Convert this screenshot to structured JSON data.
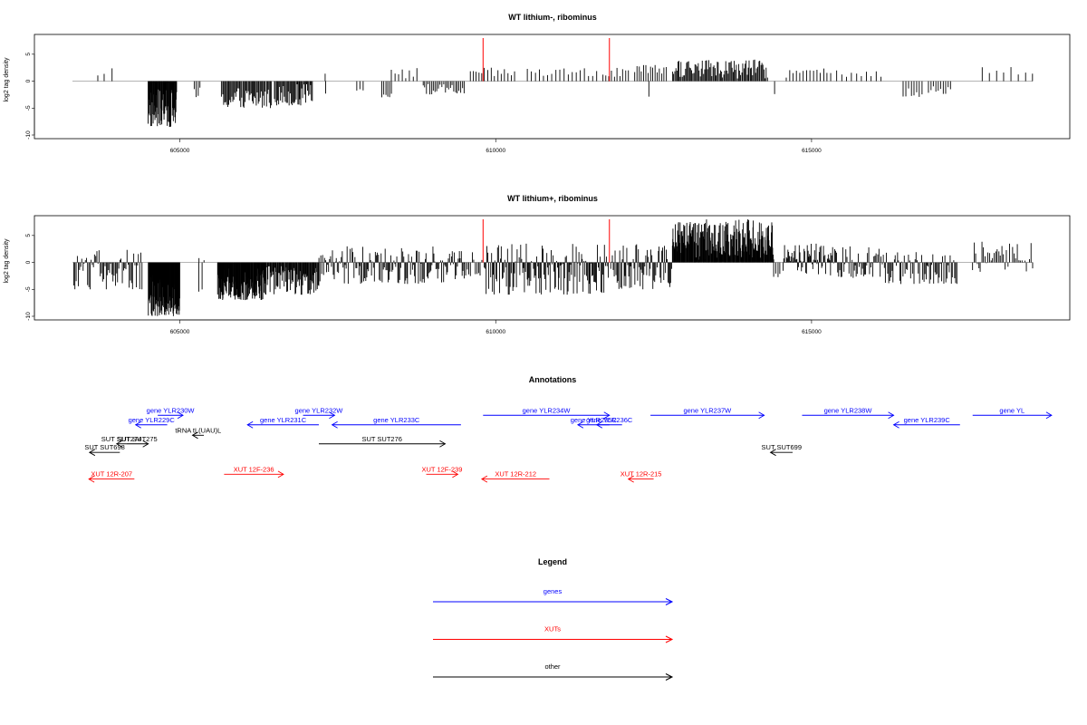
{
  "colors": {
    "genes": "#0000ff",
    "xuts": "#ff0000",
    "other": "#000000",
    "marker": "#ff0000"
  },
  "chart_data": [
    {
      "type": "bar",
      "title": "WT lithium-, ribominus",
      "ylabel": "log2 tag density",
      "xlim": [
        603300,
        618500
      ],
      "ylim": [
        -10,
        8
      ],
      "yticks": [
        5,
        0,
        -5,
        -10
      ],
      "xticks": [
        605000,
        610000,
        615000
      ],
      "markers": [
        609800,
        611800
      ],
      "grid": false,
      "regions": [
        {
          "from": 603700,
          "to": 603800,
          "n": 2,
          "min": 0.5,
          "max": 2.5
        },
        {
          "from": 603900,
          "to": 603950,
          "n": 1,
          "min": 2.0,
          "max": 3.0
        },
        {
          "from": 604500,
          "to": 604950,
          "n": 60,
          "min": -8.5,
          "max": -1.5
        },
        {
          "from": 605230,
          "to": 605320,
          "n": 4,
          "min": -3.5,
          "max": -1.0
        },
        {
          "from": 605660,
          "to": 606450,
          "n": 50,
          "min": -5,
          "max": -1
        },
        {
          "from": 606500,
          "to": 607100,
          "n": 40,
          "min": -4.5,
          "max": -0.5
        },
        {
          "from": 607280,
          "to": 607320,
          "n": 1,
          "min": 1,
          "max": 1.5
        },
        {
          "from": 607300,
          "to": 607320,
          "n": 1,
          "min": -2.5,
          "max": -2
        },
        {
          "from": 607800,
          "to": 607900,
          "n": 3,
          "min": -2,
          "max": -1
        },
        {
          "from": 608200,
          "to": 608350,
          "n": 6,
          "min": -3,
          "max": -1
        },
        {
          "from": 608350,
          "to": 608750,
          "n": 8,
          "min": 0.5,
          "max": 2.5
        },
        {
          "from": 608850,
          "to": 609500,
          "n": 25,
          "min": -2.5,
          "max": -0.5
        },
        {
          "from": 609600,
          "to": 609780,
          "n": 5,
          "min": 0.5,
          "max": 2.0
        },
        {
          "from": 609820,
          "to": 610300,
          "n": 10,
          "min": 0.5,
          "max": 2.5
        },
        {
          "from": 610500,
          "to": 611600,
          "n": 18,
          "min": 0.5,
          "max": 2.5
        },
        {
          "from": 611700,
          "to": 612100,
          "n": 10,
          "min": 0.5,
          "max": 2.5
        },
        {
          "from": 612200,
          "to": 612700,
          "n": 15,
          "min": 0.5,
          "max": 3.0
        },
        {
          "from": 612400,
          "to": 612450,
          "n": 1,
          "min": -3,
          "max": -2
        },
        {
          "from": 612800,
          "to": 614300,
          "n": 90,
          "min": 0.5,
          "max": 4.0
        },
        {
          "from": 614400,
          "to": 614430,
          "n": 1,
          "min": -3,
          "max": -2
        },
        {
          "from": 614600,
          "to": 615300,
          "n": 14,
          "min": 0.5,
          "max": 2.5
        },
        {
          "from": 615400,
          "to": 616100,
          "n": 10,
          "min": 0.5,
          "max": 2.0
        },
        {
          "from": 616450,
          "to": 616750,
          "n": 8,
          "min": -3,
          "max": -1
        },
        {
          "from": 616850,
          "to": 617200,
          "n": 10,
          "min": -2.5,
          "max": -0.5
        },
        {
          "from": 617700,
          "to": 618500,
          "n": 8,
          "min": 0.5,
          "max": 3.0
        }
      ]
    },
    {
      "type": "bar",
      "title": "WT lithium+, ribominus",
      "ylabel": "log2 tag density",
      "xlim": [
        603300,
        618500
      ],
      "ylim": [
        -10,
        8
      ],
      "yticks": [
        5,
        0,
        -5,
        -10
      ],
      "xticks": [
        605000,
        610000,
        615000
      ],
      "markers": [
        609800,
        611800
      ],
      "grid": false,
      "regions": [
        {
          "from": 603320,
          "to": 604400,
          "n": 60,
          "min": -5,
          "max": 2.5
        },
        {
          "from": 604500,
          "to": 605000,
          "n": 120,
          "min": -10,
          "max": -1
        },
        {
          "from": 605300,
          "to": 605380,
          "n": 2,
          "min": 0.3,
          "max": 0.8
        },
        {
          "from": 605300,
          "to": 605350,
          "n": 2,
          "min": -6,
          "max": -2
        },
        {
          "from": 605600,
          "to": 606350,
          "n": 120,
          "min": -7,
          "max": -1
        },
        {
          "from": 606350,
          "to": 607200,
          "n": 80,
          "min": -6,
          "max": -0.5
        },
        {
          "from": 607200,
          "to": 609500,
          "n": 150,
          "min": -4,
          "max": 3.0
        },
        {
          "from": 609500,
          "to": 609780,
          "n": 12,
          "min": -3,
          "max": 2.0
        },
        {
          "from": 609820,
          "to": 611780,
          "n": 140,
          "min": -6,
          "max": 3.5
        },
        {
          "from": 611820,
          "to": 612800,
          "n": 70,
          "min": -5,
          "max": 3.5
        },
        {
          "from": 612800,
          "to": 614400,
          "n": 200,
          "min": 0.5,
          "max": 8.0
        },
        {
          "from": 614400,
          "to": 614500,
          "n": 4,
          "min": -3,
          "max": -1
        },
        {
          "from": 614550,
          "to": 615300,
          "n": 60,
          "min": -2.5,
          "max": 3.5
        },
        {
          "from": 615300,
          "to": 616100,
          "n": 50,
          "min": -3,
          "max": 3.0
        },
        {
          "from": 616100,
          "to": 617300,
          "n": 70,
          "min": -4,
          "max": 2.0
        },
        {
          "from": 617550,
          "to": 618500,
          "n": 40,
          "min": -2,
          "max": 4.0
        }
      ]
    }
  ],
  "annotations": {
    "title": "Annotations",
    "xlim": [
      603300,
      618500
    ],
    "items": [
      {
        "label": "gene YLR229C",
        "kind": "genes",
        "from": 604800,
        "to": 604300,
        "row": 1.5
      },
      {
        "label": "gene YLR230W",
        "kind": "genes",
        "from": 604650,
        "to": 605050,
        "row": 0.5
      },
      {
        "label": "gene YLR231C",
        "kind": "genes",
        "from": 607200,
        "to": 606070,
        "row": 1.5
      },
      {
        "label": "gene YLR232W",
        "kind": "genes",
        "from": 606950,
        "to": 607450,
        "row": 0.5
      },
      {
        "label": "gene YLR233C",
        "kind": "genes",
        "from": 609450,
        "to": 607410,
        "row": 1.5
      },
      {
        "label": "gene YLR234W",
        "kind": "genes",
        "from": 609800,
        "to": 611800,
        "row": 0.5
      },
      {
        "label": "gene YLR235C",
        "kind": "genes",
        "from": 611800,
        "to": 611300,
        "row": 1.5
      },
      {
        "label": "gene YLR236C",
        "kind": "genes",
        "from": 612000,
        "to": 611600,
        "row": 1.5
      },
      {
        "label": "gene YLR237W",
        "kind": "genes",
        "from": 612450,
        "to": 614250,
        "row": 0.5
      },
      {
        "label": "gene YLR238W",
        "kind": "genes",
        "from": 614850,
        "to": 616300,
        "row": 0.5
      },
      {
        "label": "gene YLR239C",
        "kind": "genes",
        "from": 617350,
        "to": 616300,
        "row": 1.5
      },
      {
        "label": "gene YL",
        "kind": "genes",
        "from": 617550,
        "to": 618800,
        "row": 0.5
      },
      {
        "label": "tRNA tL(UAU)L",
        "kind": "other",
        "from": 605380,
        "to": 605200,
        "row": 2.6
      },
      {
        "label": "SUT SUT274",
        "kind": "other",
        "from": 604150,
        "to": 604000,
        "row": 3.5
      },
      {
        "label": "SUT SUT275",
        "kind": "other",
        "from": 604150,
        "to": 604500,
        "row": 3.5
      },
      {
        "label": "SUT SUT698",
        "kind": "other",
        "from": 604050,
        "to": 603570,
        "row": 4.4
      },
      {
        "label": "SUT SUT276",
        "kind": "other",
        "from": 607200,
        "to": 609200,
        "row": 3.5
      },
      {
        "label": "SUT SUT699",
        "kind": "other",
        "from": 614700,
        "to": 614350,
        "row": 4.4
      },
      {
        "label": "XUT 12R-207",
        "kind": "xuts",
        "from": 604280,
        "to": 603560,
        "row": 7.2
      },
      {
        "label": "XUT 12F-236",
        "kind": "xuts",
        "from": 605700,
        "to": 606640,
        "row": 6.7
      },
      {
        "label": "XUT 12F-239",
        "kind": "xuts",
        "from": 608900,
        "to": 609400,
        "row": 6.7
      },
      {
        "label": "XUT 12R-212",
        "kind": "xuts",
        "from": 610850,
        "to": 609780,
        "row": 7.2
      },
      {
        "label": "XUT 12R-215",
        "kind": "xuts",
        "from": 612500,
        "to": 612100,
        "row": 7.2
      }
    ]
  },
  "legend": {
    "title": "Legend",
    "entries": [
      {
        "label": "genes",
        "kind": "genes"
      },
      {
        "label": "XUTs",
        "kind": "xuts"
      },
      {
        "label": "other",
        "kind": "other"
      }
    ]
  }
}
